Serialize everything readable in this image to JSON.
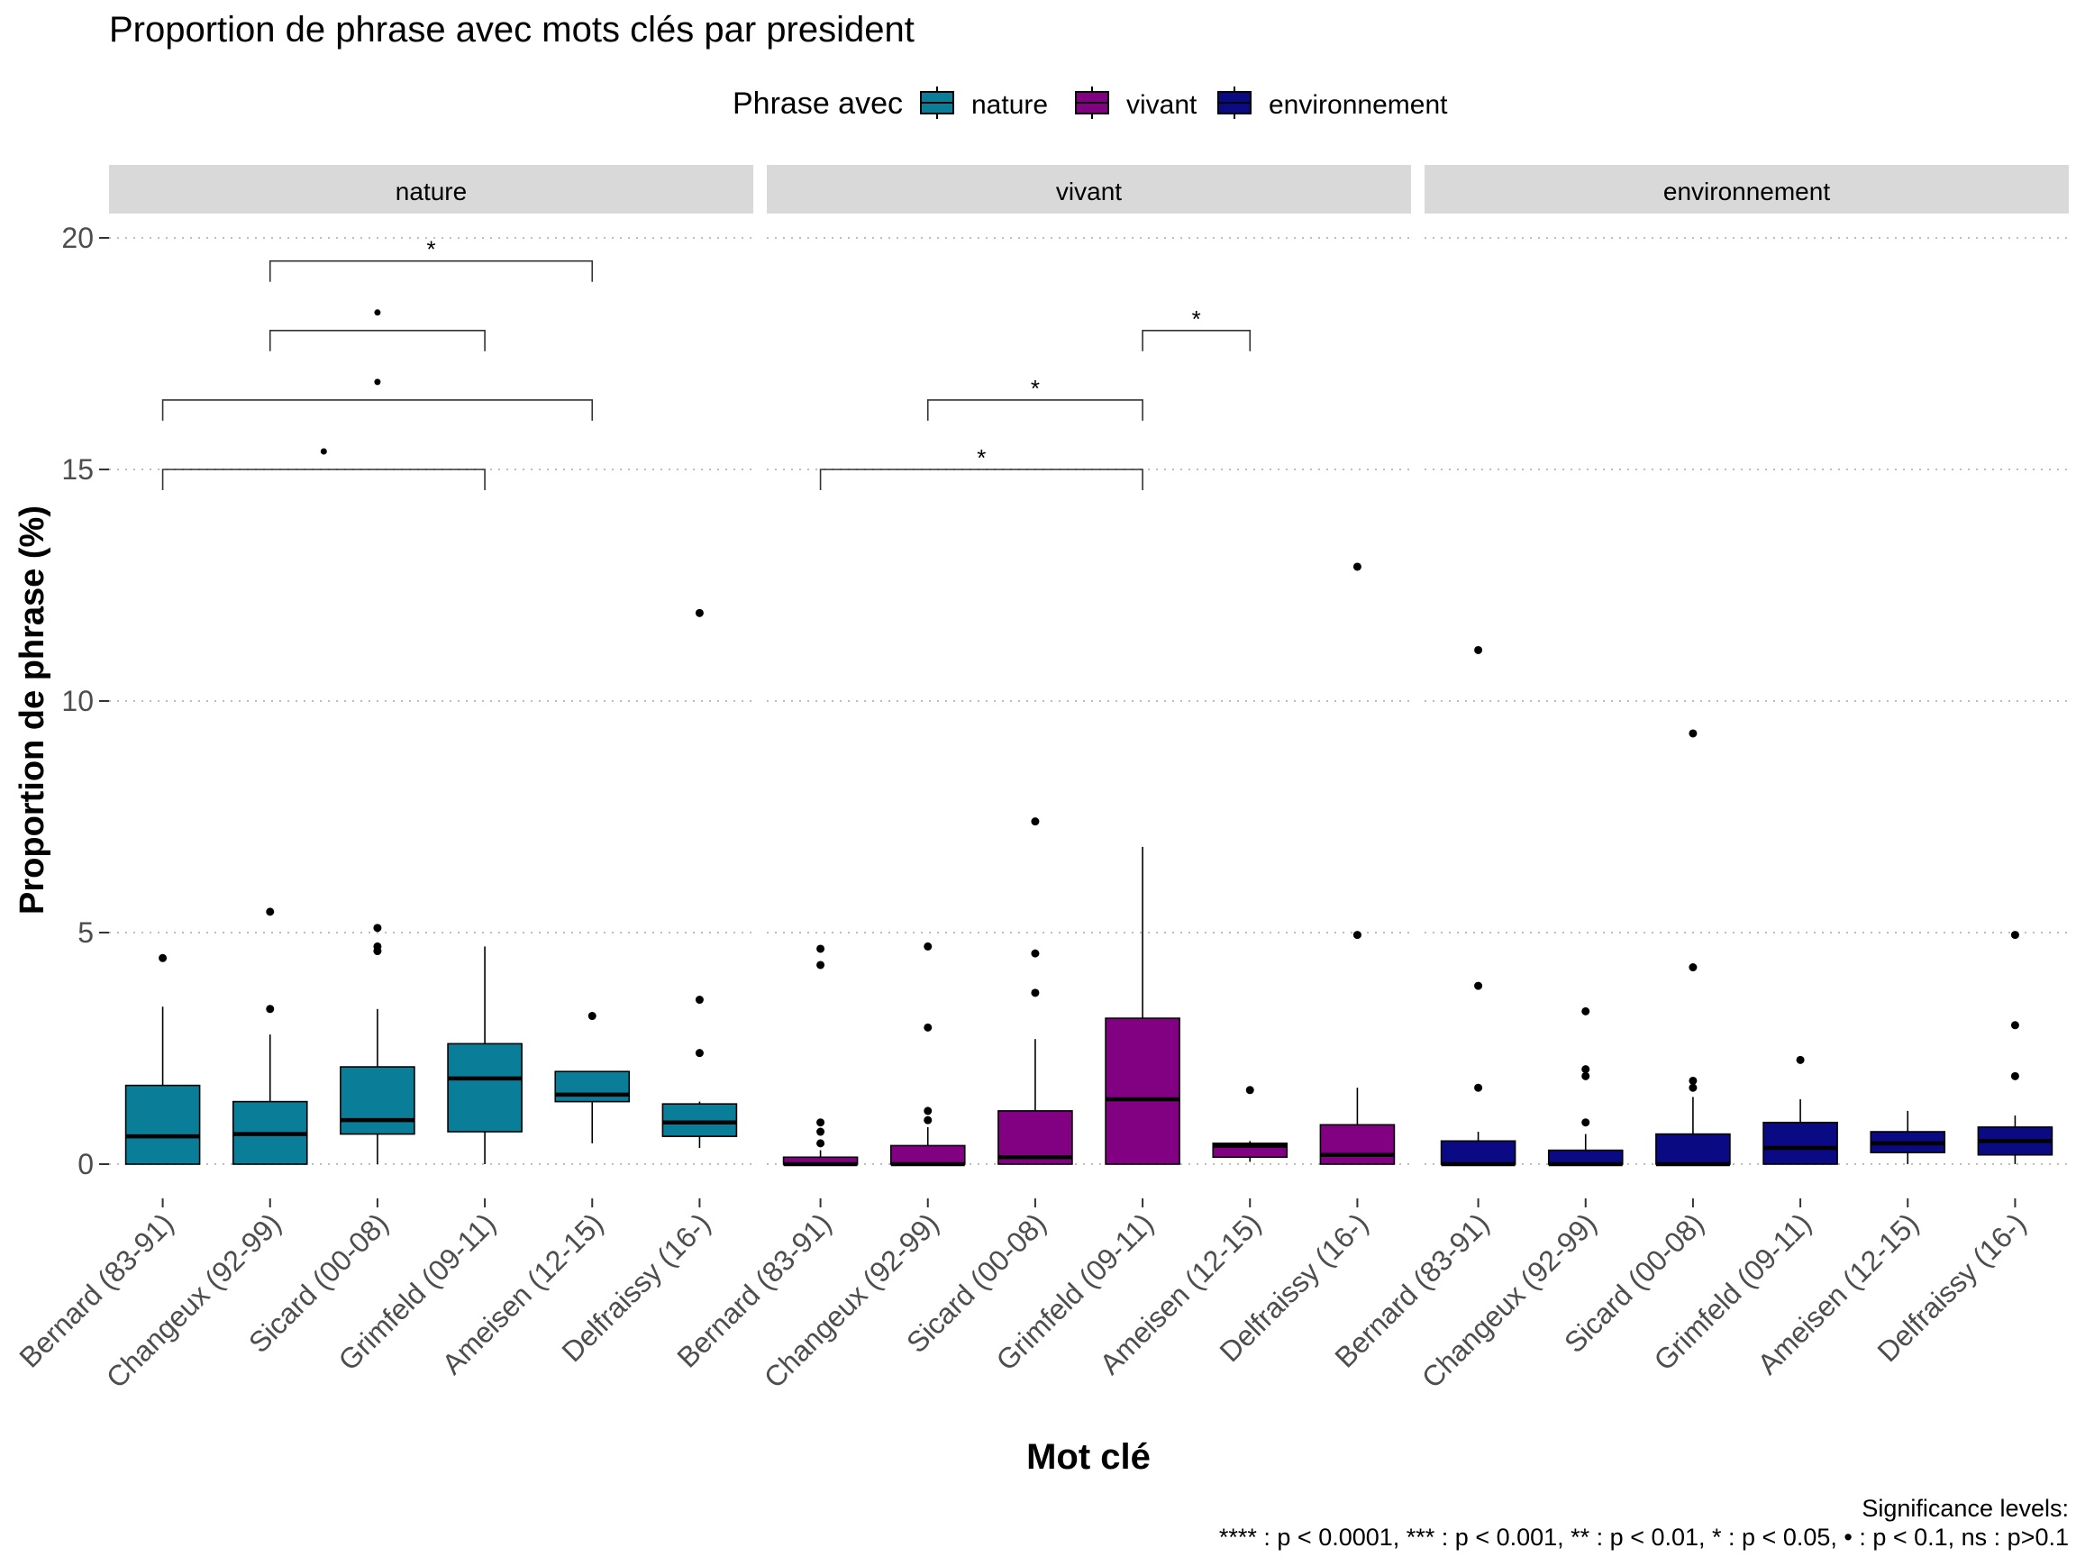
{
  "chart_data": {
    "type": "box",
    "title": "Proportion de phrase avec mots clés par president",
    "xlabel": "Mot clé",
    "ylabel": "Proportion de phrase (%)",
    "ylim": [
      -0.8,
      20.4
    ],
    "yticks": [
      0,
      5,
      10,
      15,
      20
    ],
    "grid": "horizontal dotted",
    "legend": {
      "title": "Phrase avec",
      "position": "top",
      "entries": [
        {
          "name": "nature",
          "color": "#0a7e99"
        },
        {
          "name": "vivant",
          "color": "#820082"
        },
        {
          "name": "environnement",
          "color": "#0a0a84"
        }
      ]
    },
    "categories": [
      "Bernard (83-91)",
      "Changeux (92-99)",
      "Sicard (00-08)",
      "Grimfeld (09-11)",
      "Ameisen (12-15)",
      "Delfraissy (16-)"
    ],
    "facets": [
      {
        "label": "nature",
        "color": "#0a7e99",
        "boxes": [
          {
            "q1": 0,
            "median": 0.6,
            "q3": 1.7,
            "whisker_low": 0,
            "whisker_high": 3.4,
            "outliers": [
              4.45
            ]
          },
          {
            "q1": 0,
            "median": 0.65,
            "q3": 1.35,
            "whisker_low": 0,
            "whisker_high": 2.8,
            "outliers": [
              3.35,
              5.45
            ]
          },
          {
            "q1": 0.65,
            "median": 0.95,
            "q3": 2.1,
            "whisker_low": 0,
            "whisker_high": 3.35,
            "outliers": [
              4.6,
              4.7,
              5.1
            ]
          },
          {
            "q1": 0.7,
            "median": 1.85,
            "q3": 2.6,
            "whisker_low": 0,
            "whisker_high": 4.7,
            "outliers": []
          },
          {
            "q1": 1.35,
            "median": 1.5,
            "q3": 2.0,
            "whisker_low": 0.45,
            "whisker_high": 2.0,
            "outliers": [
              3.2
            ]
          },
          {
            "q1": 0.6,
            "median": 0.9,
            "q3": 1.3,
            "whisker_low": 0.35,
            "whisker_high": 1.35,
            "outliers": [
              2.4,
              3.55,
              11.9
            ]
          }
        ],
        "comparisons": [
          {
            "from": 0,
            "to": 3,
            "y": 15.0,
            "label": "•"
          },
          {
            "from": 0,
            "to": 4,
            "y": 16.5,
            "label": "•"
          },
          {
            "from": 1,
            "to": 3,
            "y": 18.0,
            "label": "•"
          },
          {
            "from": 1,
            "to": 4,
            "y": 19.5,
            "label": "*"
          }
        ]
      },
      {
        "label": "vivant",
        "color": "#820082",
        "boxes": [
          {
            "q1": 0,
            "median": 0,
            "q3": 0.15,
            "whisker_low": 0,
            "whisker_high": 0.3,
            "outliers": [
              0.45,
              0.7,
              0.9,
              4.3,
              4.65
            ]
          },
          {
            "q1": 0,
            "median": 0,
            "q3": 0.4,
            "whisker_low": 0,
            "whisker_high": 0.8,
            "outliers": [
              0.95,
              1.15,
              2.95,
              4.7
            ]
          },
          {
            "q1": 0,
            "median": 0.15,
            "q3": 1.15,
            "whisker_low": 0,
            "whisker_high": 2.7,
            "outliers": [
              3.7,
              4.55,
              7.4
            ]
          },
          {
            "q1": 0,
            "median": 1.4,
            "q3": 3.15,
            "whisker_low": 0,
            "whisker_high": 6.85,
            "outliers": []
          },
          {
            "q1": 0.15,
            "median": 0.4,
            "q3": 0.45,
            "whisker_low": 0.05,
            "whisker_high": 0.5,
            "outliers": [
              1.6
            ]
          },
          {
            "q1": 0,
            "median": 0.2,
            "q3": 0.85,
            "whisker_low": 0,
            "whisker_high": 1.65,
            "outliers": [
              4.95,
              12.9
            ]
          }
        ],
        "comparisons": [
          {
            "from": 0,
            "to": 3,
            "y": 15.0,
            "label": "*"
          },
          {
            "from": 1,
            "to": 3,
            "y": 16.5,
            "label": "*"
          },
          {
            "from": 3,
            "to": 4,
            "y": 18.0,
            "label": "*"
          }
        ]
      },
      {
        "label": "environnement",
        "color": "#0a0a84",
        "boxes": [
          {
            "q1": 0,
            "median": 0,
            "q3": 0.5,
            "whisker_low": 0,
            "whisker_high": 0.7,
            "outliers": [
              1.65,
              3.85,
              11.1
            ]
          },
          {
            "q1": 0,
            "median": 0,
            "q3": 0.3,
            "whisker_low": 0,
            "whisker_high": 0.65,
            "outliers": [
              0.9,
              1.9,
              2.05,
              3.3
            ]
          },
          {
            "q1": 0,
            "median": 0,
            "q3": 0.65,
            "whisker_low": 0,
            "whisker_high": 1.45,
            "outliers": [
              1.65,
              1.8,
              4.25,
              9.3
            ]
          },
          {
            "q1": 0,
            "median": 0.35,
            "q3": 0.9,
            "whisker_low": 0,
            "whisker_high": 1.4,
            "outliers": [
              2.25
            ]
          },
          {
            "q1": 0.25,
            "median": 0.45,
            "q3": 0.7,
            "whisker_low": 0,
            "whisker_high": 1.15,
            "outliers": []
          },
          {
            "q1": 0.2,
            "median": 0.5,
            "q3": 0.8,
            "whisker_low": 0,
            "whisker_high": 1.05,
            "outliers": [
              1.9,
              3.0,
              4.95
            ]
          }
        ],
        "comparisons": []
      }
    ],
    "footnote": [
      "Significance levels:",
      "**** : p < 0.0001, *** : p < 0.001, ** : p < 0.01, * : p < 0.05, • : p < 0.1, ns : p>0.1"
    ]
  }
}
